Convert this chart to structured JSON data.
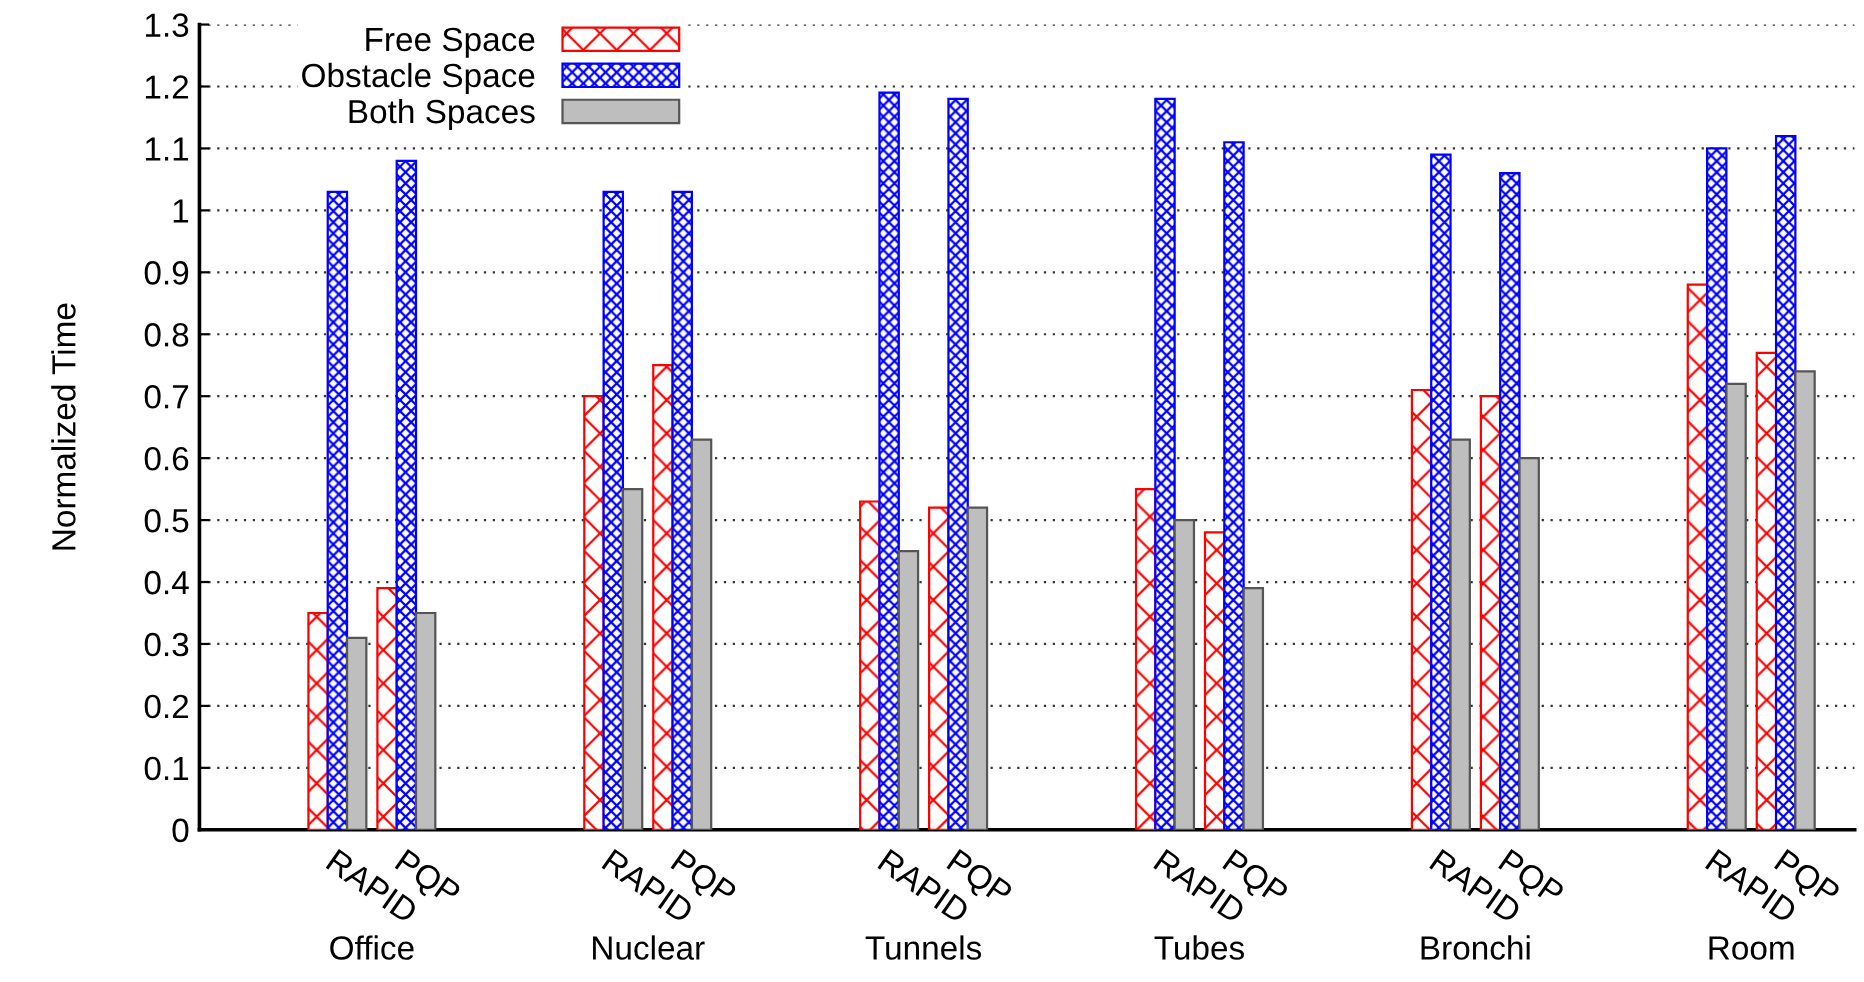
{
  "chart_data": {
    "type": "bar",
    "ylabel": "Normalized Time",
    "categories": [
      null,
      "RAPID",
      "PQP",
      null,
      null,
      "RAPID",
      "PQP",
      null,
      null,
      "RAPID",
      "PQP",
      null,
      null,
      "RAPID",
      "PQP",
      null,
      null,
      "RAPID",
      "PQP",
      null,
      null,
      "RAPID",
      "PQP",
      null
    ],
    "series": [
      {
        "name": "Free Space",
        "color": "#ff0000",
        "values": [
          null,
          0.35,
          0.39,
          null,
          null,
          0.7,
          0.75,
          null,
          null,
          0.53,
          0.52,
          null,
          null,
          0.55,
          0.48,
          null,
          null,
          0.71,
          0.7,
          null,
          null,
          0.88,
          0.77,
          null
        ]
      },
      {
        "name": "Obstacle Space",
        "color": "#0000ff",
        "values": [
          null,
          1.03,
          1.08,
          null,
          null,
          1.03,
          1.03,
          null,
          null,
          1.19,
          1.18,
          null,
          null,
          1.18,
          1.11,
          null,
          null,
          1.09,
          1.06,
          null,
          null,
          1.1,
          1.12,
          null
        ]
      },
      {
        "name": "Both Spaces",
        "color": "#bebebe",
        "values": [
          null,
          0.31,
          0.35,
          null,
          null,
          0.55,
          0.63,
          null,
          null,
          0.45,
          0.52,
          null,
          null,
          0.5,
          0.39,
          null,
          null,
          0.63,
          0.6,
          null,
          null,
          0.72,
          0.74,
          null
        ]
      }
    ],
    "annotations": [
      "Office",
      "Nuclear",
      "Tunnels",
      "Tubes",
      "Bronchi",
      "Room"
    ],
    "ylim": [
      0,
      1.3
    ],
    "yticks": [
      0,
      0.1,
      0.2,
      0.3,
      0.4,
      0.5,
      0.6,
      0.7,
      0.8,
      0.9,
      1,
      1.1,
      1.2,
      1.3
    ],
    "grid": "y",
    "legend": "top left"
  }
}
